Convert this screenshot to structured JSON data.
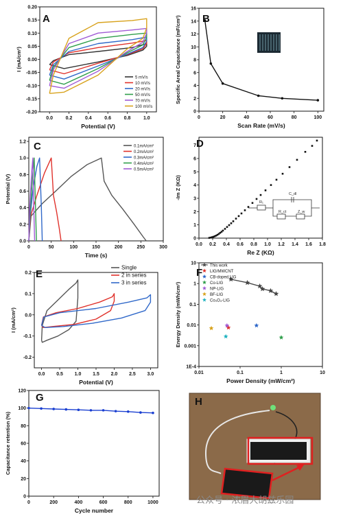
{
  "watermark": "公众号 · 浓眉大胡兹乐园",
  "chart_data": [
    {
      "id": "A",
      "panel_label": "A",
      "type": "line",
      "xlabel": "Potential (V)",
      "ylabel": "I (mA/cm²)",
      "xlim": [
        -0.1,
        1.1
      ],
      "ylim": [
        -0.2,
        0.2
      ],
      "xticks": [
        "0.0",
        "0.2",
        "0.4",
        "0.6",
        "0.8",
        "1.0"
      ],
      "yticks": [
        "-0.20",
        "-0.15",
        "-0.10",
        "-0.05",
        "0.00",
        "0.05",
        "0.10",
        "0.15",
        "0.20"
      ],
      "legend": "bottom-right",
      "series": [
        {
          "name": "5 mV/s",
          "color": "#333333",
          "x": [
            0,
            0.04,
            0.2,
            0.5,
            0.85,
            1.0,
            1.0,
            0.96,
            0.8,
            0.5,
            0.15,
            0
          ],
          "y": [
            -0.02,
            -0.005,
            0.018,
            0.03,
            0.045,
            0.06,
            0.05,
            0.035,
            0.015,
            -0.01,
            -0.035,
            -0.02
          ]
        },
        {
          "name": "10 mV/s",
          "color": "#e0312b",
          "x": [
            0,
            0.04,
            0.2,
            0.5,
            0.85,
            1.0,
            1.0,
            0.96,
            0.8,
            0.5,
            0.15,
            0
          ],
          "y": [
            -0.04,
            -0.01,
            0.025,
            0.045,
            0.062,
            0.072,
            0.06,
            0.04,
            0.018,
            -0.015,
            -0.055,
            -0.04
          ]
        },
        {
          "name": "20 mV/s",
          "color": "#2f68c9",
          "x": [
            0,
            0.04,
            0.2,
            0.5,
            0.85,
            1.0,
            1.0,
            0.96,
            0.8,
            0.5,
            0.15,
            0
          ],
          "y": [
            -0.06,
            -0.02,
            0.03,
            0.06,
            0.075,
            0.085,
            0.07,
            0.045,
            0.02,
            -0.025,
            -0.075,
            -0.06
          ]
        },
        {
          "name": "50 mV/s",
          "color": "#2e9e4a",
          "x": [
            0,
            0.04,
            0.2,
            0.5,
            0.85,
            1.0,
            1.0,
            0.96,
            0.8,
            0.5,
            0.15,
            0
          ],
          "y": [
            -0.08,
            -0.03,
            0.045,
            0.08,
            0.095,
            0.1,
            0.085,
            0.055,
            0.025,
            -0.035,
            -0.095,
            -0.08
          ]
        },
        {
          "name": "70 mV/s",
          "color": "#a05ad4",
          "x": [
            0,
            0.04,
            0.2,
            0.5,
            0.85,
            1.0,
            1.0,
            0.96,
            0.8,
            0.5,
            0.15,
            0
          ],
          "y": [
            -0.1,
            -0.04,
            0.06,
            0.1,
            0.112,
            0.118,
            0.1,
            0.065,
            0.03,
            -0.045,
            -0.11,
            -0.1
          ]
        },
        {
          "name": "100 mV/s",
          "color": "#d8a21c",
          "x": [
            0,
            0.04,
            0.2,
            0.5,
            0.85,
            1.0,
            1.0,
            0.96,
            0.8,
            0.5,
            0.15,
            0
          ],
          "y": [
            -0.13,
            -0.06,
            0.08,
            0.14,
            0.148,
            0.155,
            0.12,
            0.08,
            0.04,
            -0.06,
            -0.125,
            -0.13
          ]
        }
      ]
    },
    {
      "id": "B",
      "panel_label": "B",
      "type": "line",
      "xlabel": "Scan Rate (mV/s)",
      "ylabel": "Specific Areal Capacitance (mF/cm²)",
      "xlim": [
        0,
        105
      ],
      "ylim": [
        0,
        16
      ],
      "xticks": [
        "0",
        "20",
        "40",
        "60",
        "80",
        "100"
      ],
      "yticks": [
        "0",
        "2",
        "4",
        "6",
        "8",
        "10",
        "12",
        "14",
        "16"
      ],
      "series": [
        {
          "name": "",
          "color": "#111111",
          "x": [
            5,
            10,
            20,
            50,
            70,
            100
          ],
          "y": [
            14.1,
            7.4,
            4.3,
            2.4,
            2.0,
            1.7
          ]
        }
      ]
    },
    {
      "id": "C",
      "panel_label": "C",
      "type": "line",
      "xlabel": "Time (s)",
      "ylabel": "Potential (V)",
      "xlim": [
        0,
        300
      ],
      "ylim": [
        0,
        1.25
      ],
      "xticks": [
        "0",
        "50",
        "100",
        "150",
        "200",
        "250",
        "300"
      ],
      "yticks": [
        "0.0",
        "0.2",
        "0.4",
        "0.6",
        "0.8",
        "1.0",
        "1.2"
      ],
      "legend": "top-right",
      "series": [
        {
          "name": "0.1mA/cm²",
          "color": "#555555",
          "x": [
            0,
            5,
            30,
            60,
            95,
            130,
            162,
            168,
            185,
            210,
            235,
            255,
            262
          ],
          "y": [
            0,
            0.3,
            0.45,
            0.6,
            0.78,
            0.92,
            1.0,
            0.72,
            0.55,
            0.38,
            0.2,
            0.05,
            0
          ]
        },
        {
          "name": "0.2mA/cm²",
          "color": "#e0312b",
          "x": [
            0,
            4,
            18,
            35,
            50,
            55,
            62,
            68,
            72
          ],
          "y": [
            0,
            0.3,
            0.55,
            0.82,
            1.0,
            0.55,
            0.35,
            0.15,
            0
          ]
        },
        {
          "name": "0.3mA/cm²",
          "color": "#2f68c9",
          "x": [
            0,
            3,
            10,
            18,
            24,
            28,
            30
          ],
          "y": [
            0,
            0.3,
            0.65,
            0.9,
            1.0,
            0.4,
            0
          ]
        },
        {
          "name": "0.4mA/cm²",
          "color": "#2e9e4a",
          "x": [
            0,
            3,
            8,
            12,
            15,
            17
          ],
          "y": [
            0,
            0.35,
            0.75,
            1.0,
            0.4,
            0
          ]
        },
        {
          "name": "0.5mA/cm²",
          "color": "#a05ad4",
          "x": [
            0,
            2,
            6,
            9,
            11,
            13
          ],
          "y": [
            0,
            0.4,
            0.8,
            1.0,
            0.4,
            0
          ]
        }
      ]
    },
    {
      "id": "D",
      "panel_label": "D",
      "type": "scatter",
      "xlabel": "Re Z (KΩ)",
      "ylabel": "-Im Z (KΩ)",
      "xlim": [
        0,
        1.8
      ],
      "ylim": [
        0,
        7.6
      ],
      "xticks": [
        "0.0",
        "0.2",
        "0.4",
        "0.6",
        "0.8",
        "1.0",
        "1.2",
        "1.4",
        "1.6",
        "1.8"
      ],
      "yticks": [
        "0",
        "1",
        "2",
        "3",
        "4",
        "5",
        "6",
        "7"
      ],
      "circuit_labels": [
        "R₁",
        "C_dl",
        "R_ct",
        "Z_w"
      ],
      "series": [
        {
          "name": "",
          "color": "#111111",
          "x": [
            0.15,
            0.17,
            0.19,
            0.21,
            0.23,
            0.25,
            0.27,
            0.29,
            0.31,
            0.33,
            0.35,
            0.38,
            0.41,
            0.44,
            0.47,
            0.5,
            0.54,
            0.58,
            0.62,
            0.67,
            0.72,
            0.78,
            0.84,
            0.9,
            0.97,
            1.05,
            1.13,
            1.22,
            1.32,
            1.43,
            1.55,
            1.65,
            1.72
          ],
          "y": [
            0.02,
            0.04,
            0.07,
            0.1,
            0.14,
            0.19,
            0.25,
            0.32,
            0.4,
            0.48,
            0.57,
            0.7,
            0.84,
            0.98,
            1.12,
            1.27,
            1.47,
            1.66,
            1.86,
            2.1,
            2.35,
            2.65,
            2.95,
            3.25,
            3.6,
            4.0,
            4.4,
            4.85,
            5.35,
            5.9,
            6.5,
            6.95,
            7.35
          ]
        }
      ]
    },
    {
      "id": "E",
      "panel_label": "E",
      "type": "line",
      "xlabel": "Potential (V)",
      "ylabel": "I (mA/cm²)",
      "xlim": [
        -0.2,
        3.2
      ],
      "ylim": [
        -0.25,
        0.2
      ],
      "xticks": [
        "0.0",
        "0.5",
        "1.0",
        "1.5",
        "2.0",
        "2.5",
        "3.0"
      ],
      "yticks": [
        "-0.2",
        "-0.1",
        "0.0",
        "0.1",
        "0.2"
      ],
      "legend": "top-right",
      "series": [
        {
          "name": "Single",
          "color": "#555555",
          "x": [
            0,
            0.02,
            0.15,
            0.45,
            0.75,
            0.95,
            1.0,
            1.0,
            0.95,
            0.75,
            0.45,
            0.15,
            0.02,
            0
          ],
          "y": [
            -0.12,
            -0.05,
            0.02,
            0.07,
            0.12,
            0.15,
            0.165,
            0.08,
            -0.03,
            -0.07,
            -0.1,
            -0.12,
            -0.13,
            -0.12
          ]
        },
        {
          "name": "2 in series",
          "color": "#e0312b",
          "x": [
            0,
            0.05,
            0.4,
            1.0,
            1.6,
            1.95,
            2.0,
            2.0,
            1.9,
            1.5,
            0.9,
            0.3,
            0.05,
            0
          ],
          "y": [
            -0.05,
            -0.01,
            0.01,
            0.03,
            0.06,
            0.085,
            0.1,
            0.065,
            0.02,
            -0.02,
            -0.045,
            -0.055,
            -0.06,
            -0.05
          ]
        },
        {
          "name": "3 in series",
          "color": "#2f68c9",
          "x": [
            0,
            0.06,
            0.5,
            1.5,
            2.4,
            2.9,
            3.0,
            3.0,
            2.85,
            2.2,
            1.4,
            0.6,
            0.1,
            0
          ],
          "y": [
            -0.05,
            -0.01,
            0.01,
            0.03,
            0.06,
            0.08,
            0.095,
            0.06,
            0.02,
            -0.015,
            -0.04,
            -0.055,
            -0.06,
            -0.05
          ]
        }
      ]
    },
    {
      "id": "F",
      "panel_label": "F",
      "type": "scatter",
      "xlabel": "Power Density (mW/cm²)",
      "ylabel": "Energy Density (mWh/cm²)",
      "xscale": "log",
      "yscale": "log",
      "xlim": [
        0.01,
        10
      ],
      "ylim": [
        0.0001,
        10
      ],
      "xticks": [
        "0.01",
        "0.1",
        "1",
        "10"
      ],
      "yticks": [
        "1E-4",
        "0.001",
        "0.01",
        "0.1",
        "1",
        "10"
      ],
      "legend": "top-left",
      "series": [
        {
          "name": "This work",
          "color": "#444444",
          "marker": "star-line",
          "x": [
            0.06,
            0.15,
            0.3,
            0.35,
            0.55,
            0.75
          ],
          "y": [
            1.6,
            1.1,
            0.75,
            0.55,
            0.45,
            0.32
          ]
        },
        {
          "name": "LIG/MWCNT",
          "color": "#e0312b",
          "x": [
            0.052
          ],
          "y": [
            0.0075
          ]
        },
        {
          "name": "CB-doped LIG",
          "color": "#2f68c9",
          "x": [
            0.25
          ],
          "y": [
            0.0095
          ]
        },
        {
          "name": "Co-LIG",
          "color": "#2e9e4a",
          "x": [
            1.0
          ],
          "y": [
            0.0025
          ]
        },
        {
          "name": "NP-LIG",
          "color": "#a05ad4",
          "x": [
            0.048
          ],
          "y": [
            0.0095
          ]
        },
        {
          "name": "BF-LIG",
          "color": "#d8a21c",
          "x": [
            0.02
          ],
          "y": [
            0.007
          ]
        },
        {
          "name": "Co₃O₄-LIG",
          "color": "#1fb3c0",
          "x": [
            0.045
          ],
          "y": [
            0.0028
          ]
        }
      ]
    },
    {
      "id": "G",
      "panel_label": "G",
      "type": "line",
      "xlabel": "Cycle number",
      "ylabel": "Capacitance retention (%)",
      "xlim": [
        0,
        1050
      ],
      "ylim": [
        0,
        120
      ],
      "xticks": [
        "0",
        "200",
        "400",
        "600",
        "800",
        "1000"
      ],
      "yticks": [
        "0",
        "20",
        "40",
        "60",
        "80",
        "100",
        "120"
      ],
      "series": [
        {
          "name": "",
          "color": "#1a3fd1",
          "x": [
            0,
            100,
            200,
            300,
            400,
            500,
            600,
            700,
            800,
            900,
            1000
          ],
          "y": [
            100,
            99.5,
            99,
            98.5,
            98,
            97.5,
            97.5,
            96.5,
            96,
            95,
            94.5
          ]
        }
      ]
    },
    {
      "id": "H",
      "panel_label": "H",
      "type": "photo",
      "colors": {
        "background": "#8b6a49",
        "wire": "#e8e8e8",
        "device": "#1a1a1a",
        "outline": "#e02020",
        "led": "#6fe07a"
      }
    }
  ]
}
